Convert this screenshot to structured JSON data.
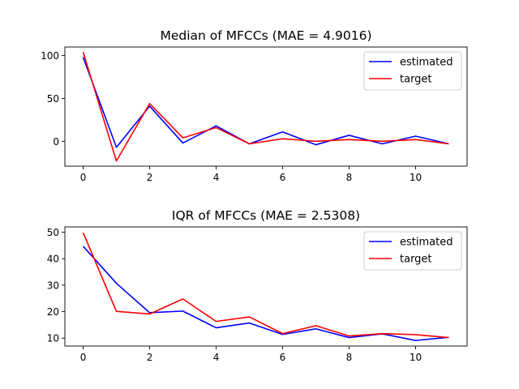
{
  "chart_data": [
    {
      "type": "line",
      "title": "Median of MFCCs (MAE = 4.9016)",
      "x": [
        0,
        1,
        2,
        3,
        4,
        5,
        6,
        7,
        8,
        9,
        10,
        11
      ],
      "series": [
        {
          "name": "estimated",
          "color": "#0000ff",
          "values": [
            98,
            -7,
            41,
            -2,
            18,
            -3,
            11,
            -4,
            7,
            -3,
            6,
            -3
          ]
        },
        {
          "name": "target",
          "color": "#ff0000",
          "values": [
            104,
            -23,
            44,
            4,
            16,
            -3,
            3,
            0,
            2,
            0,
            2,
            -3
          ]
        }
      ],
      "xlim": [
        -0.55,
        11.55
      ],
      "ylim": [
        -29,
        110
      ],
      "xticks": [
        0,
        2,
        4,
        6,
        8,
        10
      ],
      "yticks": [
        0,
        50,
        100
      ],
      "legend": "top-right"
    },
    {
      "type": "line",
      "title": "IQR of MFCCs (MAE = 2.5308)",
      "x": [
        0,
        1,
        2,
        3,
        4,
        5,
        6,
        7,
        8,
        9,
        10,
        11
      ],
      "series": [
        {
          "name": "estimated",
          "color": "#0000ff",
          "values": [
            44.7,
            30.7,
            19.6,
            20.2,
            13.9,
            15.7,
            11.4,
            13.5,
            10.2,
            11.6,
            9.1,
            10.3
          ]
        },
        {
          "name": "target",
          "color": "#ff0000",
          "values": [
            49.8,
            20.1,
            19.1,
            24.8,
            16.3,
            18.0,
            11.7,
            14.7,
            10.8,
            11.7,
            11.3,
            10.2
          ]
        }
      ],
      "xlim": [
        -0.55,
        11.55
      ],
      "ylim": [
        7.0,
        52.0
      ],
      "xticks": [
        0,
        2,
        4,
        6,
        8,
        10
      ],
      "yticks": [
        10,
        20,
        30,
        40,
        50
      ],
      "legend": "top-right"
    }
  ]
}
